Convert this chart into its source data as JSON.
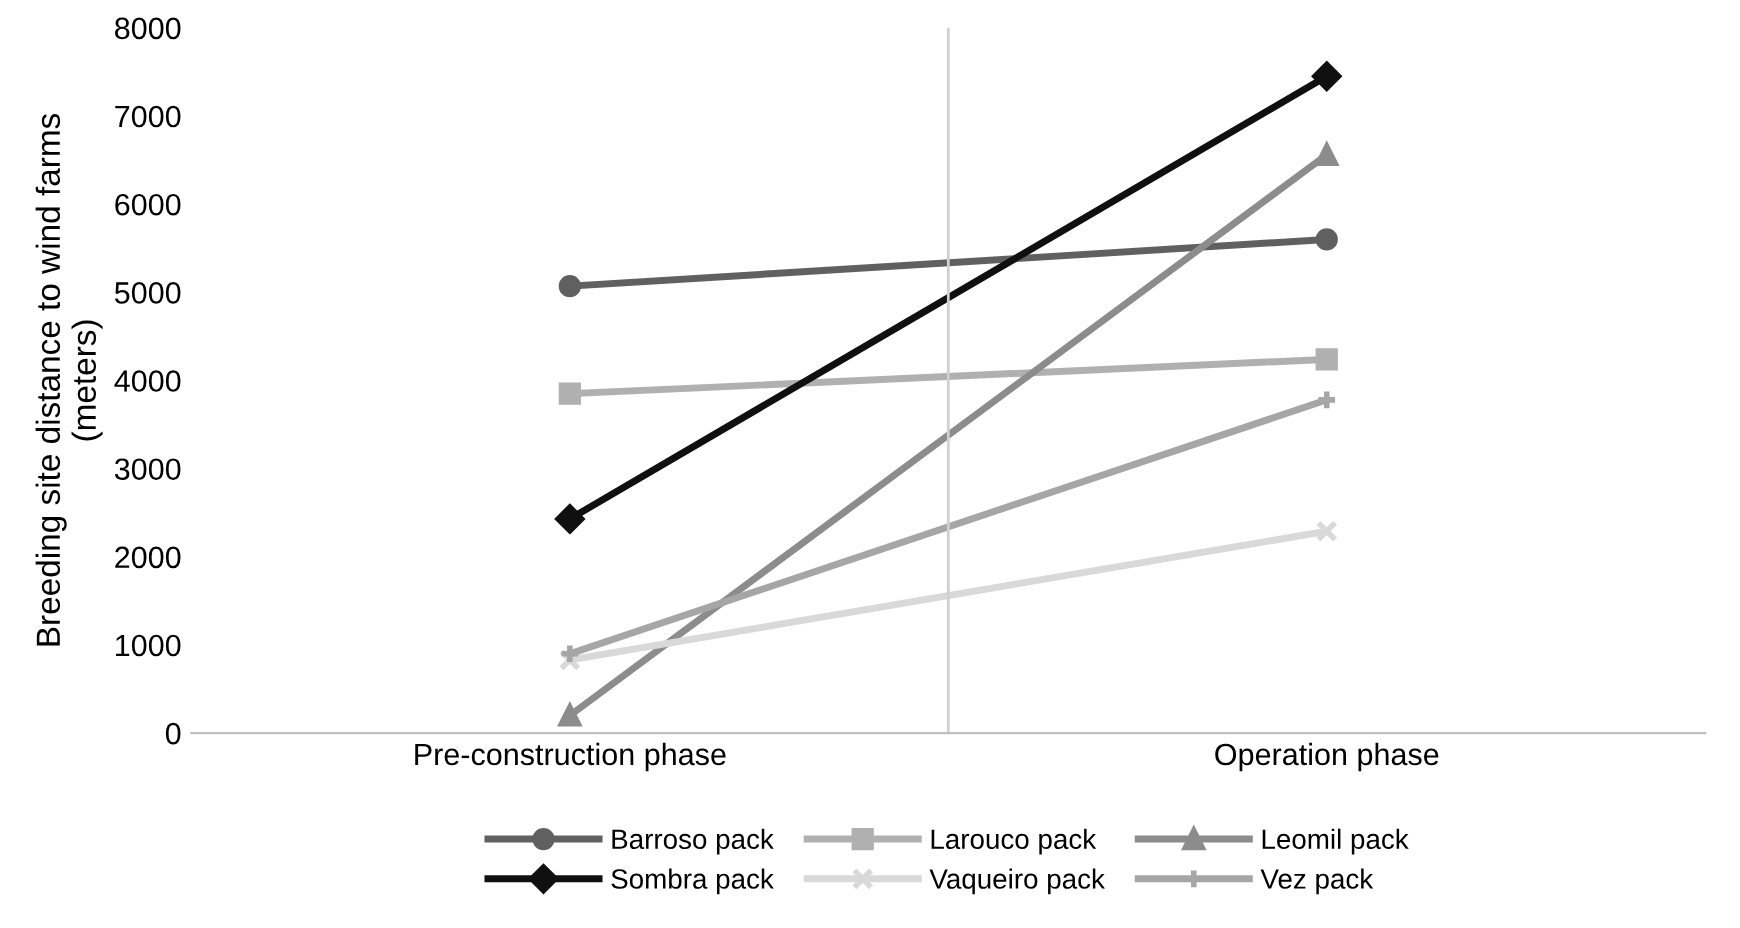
{
  "chart_data": {
    "type": "line",
    "ylabel": "Breeding site distance to wind farms\n(meters)",
    "categories": [
      "Pre-construction phase",
      "Operation phase"
    ],
    "ylim": [
      0,
      8000
    ],
    "yticks": [
      0,
      1000,
      2000,
      3000,
      4000,
      5000,
      6000,
      7000,
      8000
    ],
    "grid": "x",
    "legend": "bottom",
    "line_style": "solid",
    "series": [
      {
        "name": "Barroso pack",
        "color": "#606060",
        "marker": "circle",
        "values": [
          5070,
          5600
        ]
      },
      {
        "name": "Larouco pack",
        "color": "#b0b0b0",
        "marker": "square",
        "values": [
          3850,
          4240
        ]
      },
      {
        "name": "Leomil pack",
        "color": "#8c8c8c",
        "marker": "triangle",
        "values": [
          200,
          6560
        ]
      },
      {
        "name": "Sombra pack",
        "color": "#101010",
        "marker": "diamond",
        "values": [
          2430,
          7450
        ]
      },
      {
        "name": "Vaqueiro pack",
        "color": "#d9d9d9",
        "marker": "cross",
        "values": [
          830,
          2290
        ]
      },
      {
        "name": "Vez pack",
        "color": "#a6a6a6",
        "marker": "plus",
        "values": [
          900,
          3780
        ]
      }
    ]
  }
}
